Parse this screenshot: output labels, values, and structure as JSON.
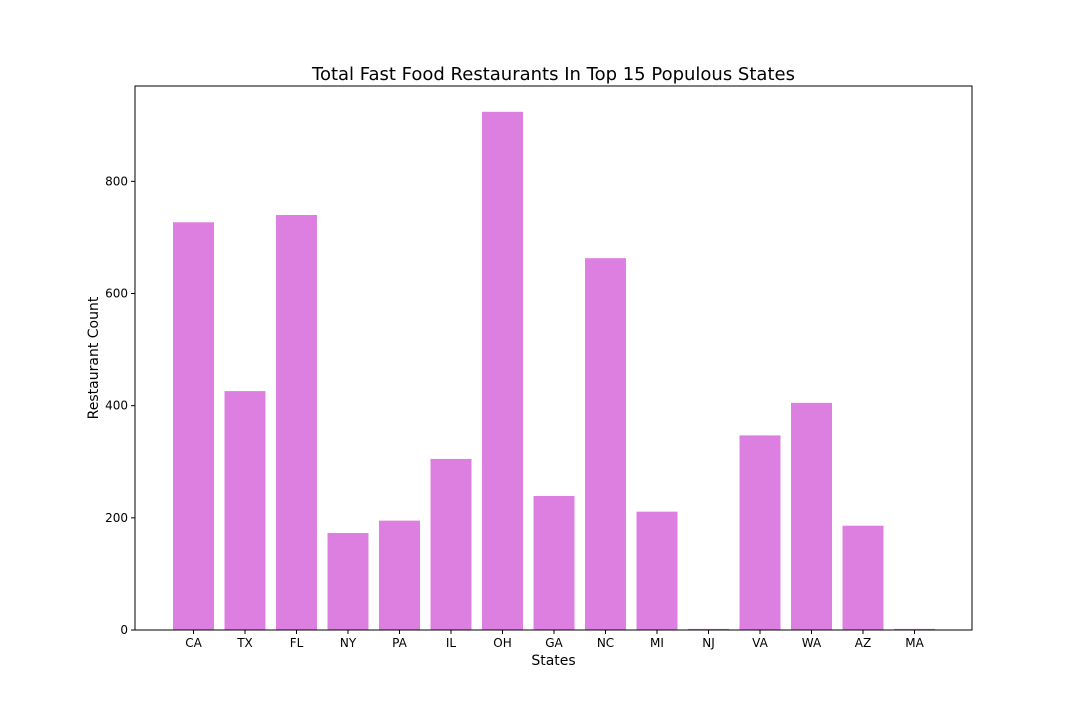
{
  "chart_data": {
    "type": "bar",
    "title": "Total Fast Food Restaurants In Top 15 Populous States",
    "xlabel": "States",
    "ylabel": "Restaurant Count",
    "categories": [
      "CA",
      "TX",
      "FL",
      "NY",
      "PA",
      "IL",
      "OH",
      "GA",
      "NC",
      "MI",
      "NJ",
      "VA",
      "WA",
      "AZ",
      "MA"
    ],
    "values": [
      727,
      426,
      740,
      173,
      195,
      305,
      924,
      239,
      663,
      211,
      2,
      347,
      405,
      186,
      2
    ],
    "ylim": [
      0,
      970
    ],
    "yticks": [
      0,
      200,
      400,
      600,
      800
    ],
    "bar_color": "#dd7fe0",
    "grid": false,
    "legend": "none"
  }
}
